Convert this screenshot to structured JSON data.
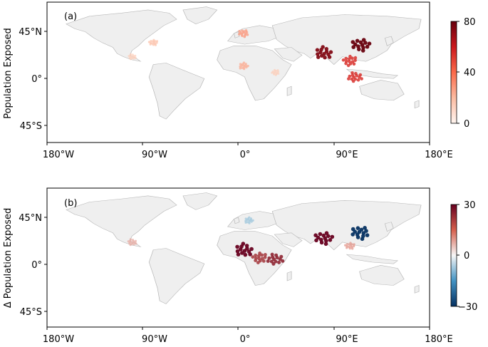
{
  "panels": [
    {
      "id": "a",
      "tag": "(a)",
      "ylabel": "Population Exposed",
      "lat_ticks": [
        "45°N",
        "0°",
        "45°S"
      ],
      "lon_ticks": [
        "180°W",
        "90°W",
        "0°",
        "90°E",
        "180°E"
      ],
      "colorbar": {
        "ticks": [
          "80",
          "40",
          "0"
        ],
        "cmap": "Reds",
        "range": [
          0,
          80
        ]
      },
      "hotspots": [
        {
          "name": "China",
          "lon": 115,
          "lat": 35,
          "value": 80
        },
        {
          "name": "India",
          "lon": 80,
          "lat": 25,
          "value": 75
        },
        {
          "name": "Southeast Asia",
          "lon": 105,
          "lat": 15,
          "value": 55
        },
        {
          "name": "Indonesia",
          "lon": 110,
          "lat": -6,
          "value": 55
        },
        {
          "name": "Europe",
          "lon": 5,
          "lat": 50,
          "value": 30
        },
        {
          "name": "West Africa",
          "lon": 5,
          "lat": 8,
          "value": 25
        },
        {
          "name": "Eastern USA",
          "lon": -80,
          "lat": 38,
          "value": 20
        },
        {
          "name": "Central Mexico",
          "lon": -100,
          "lat": 20,
          "value": 15
        },
        {
          "name": "East Africa",
          "lon": 35,
          "lat": 0,
          "value": 15
        }
      ]
    },
    {
      "id": "b",
      "tag": "(b)",
      "ylabel": "Δ Population Exposed",
      "lat_ticks": [
        "45°N",
        "0°",
        "45°S"
      ],
      "lon_ticks": [
        "180°W",
        "90°W",
        "0°",
        "90°E",
        "180°E"
      ],
      "colorbar": {
        "ticks": [
          "30",
          "0",
          "−30"
        ],
        "cmap": "RdBu_r",
        "range": [
          -30,
          30
        ]
      },
      "hotspots": [
        {
          "name": "India",
          "lon": 80,
          "lat": 25,
          "value": 30
        },
        {
          "name": "West Africa",
          "lon": 5,
          "lat": 10,
          "value": 30
        },
        {
          "name": "Central Africa",
          "lon": 20,
          "lat": 0,
          "value": 22
        },
        {
          "name": "East Africa",
          "lon": 35,
          "lat": -2,
          "value": 25
        },
        {
          "name": "Eastern China",
          "lon": 115,
          "lat": 32,
          "value": -30
        },
        {
          "name": "Europe",
          "lon": 10,
          "lat": 48,
          "value": -8
        },
        {
          "name": "Southeast Asia",
          "lon": 105,
          "lat": 15,
          "value": 10
        },
        {
          "name": "Mexico",
          "lon": -100,
          "lat": 20,
          "value": 8
        }
      ]
    }
  ]
}
